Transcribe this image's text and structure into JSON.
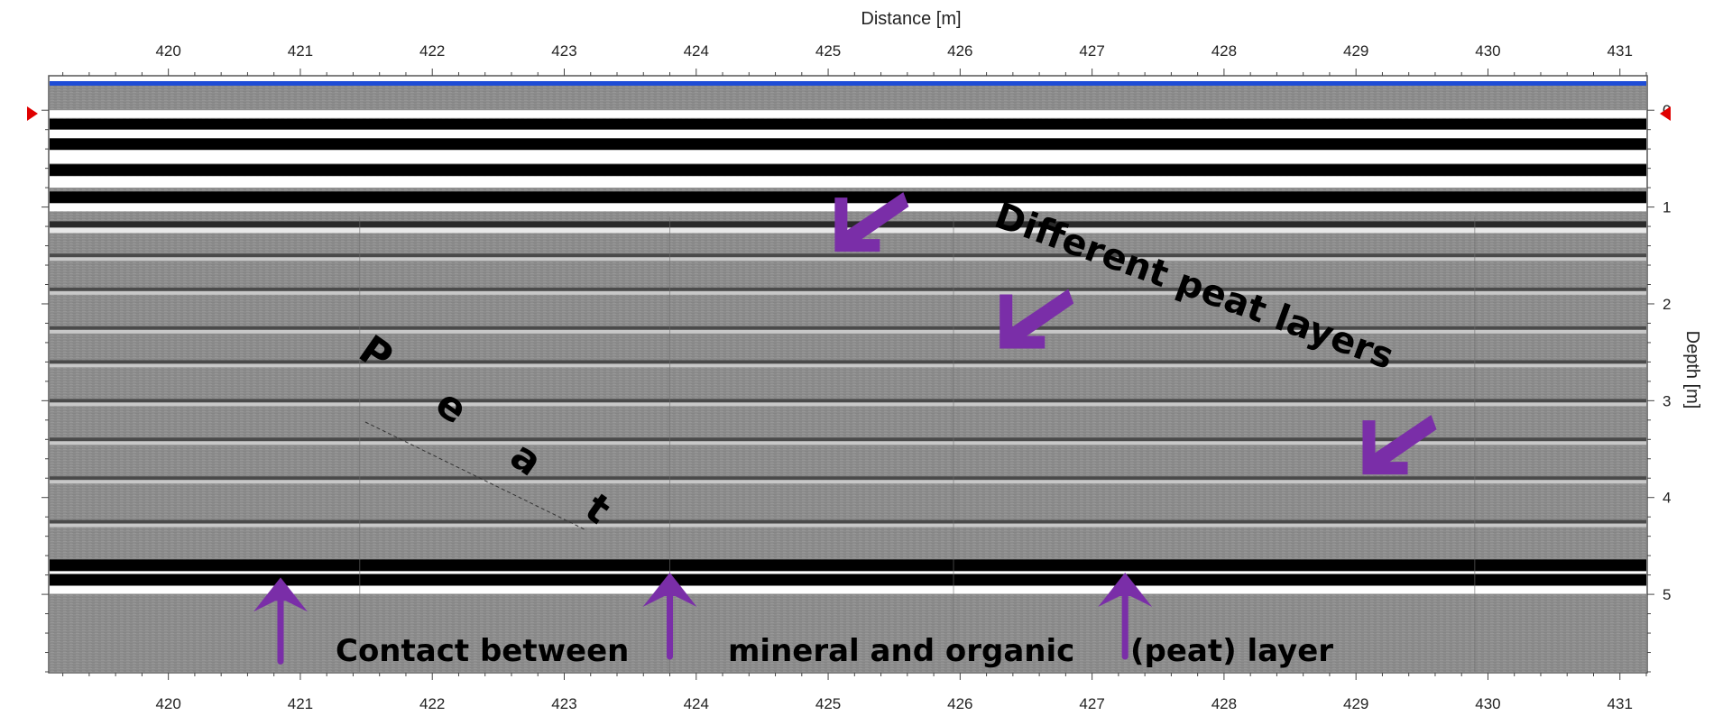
{
  "chart_data": {
    "type": "heatmap",
    "subtype": "ground-penetrating radar radargram (grayscale)",
    "xlabel": "Distance [m]",
    "ylabel": "Depth [m]",
    "xlim": [
      419.1,
      431.2
    ],
    "ylim": [
      -0.3,
      5.8
    ],
    "x_ticks": [
      420,
      421,
      422,
      423,
      424,
      425,
      426,
      427,
      428,
      429,
      430,
      431
    ],
    "y_ticks": [
      0,
      1,
      2,
      3,
      4,
      5
    ],
    "x_tick_labels": [
      "420",
      "421",
      "422",
      "423",
      "424",
      "425",
      "426",
      "427",
      "428",
      "429",
      "430",
      "431"
    ],
    "y_tick_labels": [
      "0",
      "1",
      "2",
      "3",
      "4",
      "5"
    ],
    "colormap": "grayscale",
    "surface_marker_depth": 0,
    "reflectors": [
      {
        "depth": 0.15,
        "strength": "strong"
      },
      {
        "depth": 0.35,
        "strength": "strong"
      },
      {
        "depth": 0.62,
        "strength": "strong"
      },
      {
        "depth": 0.9,
        "strength": "strong"
      },
      {
        "depth": 1.18,
        "strength": "medium"
      },
      {
        "depth": 1.5,
        "strength": "weak"
      },
      {
        "depth": 1.85,
        "strength": "weak"
      },
      {
        "depth": 2.25,
        "strength": "weak"
      },
      {
        "depth": 2.6,
        "strength": "weak"
      },
      {
        "depth": 3.0,
        "strength": "weak"
      },
      {
        "depth": 3.4,
        "strength": "weak"
      },
      {
        "depth": 3.8,
        "strength": "weak"
      },
      {
        "depth": 4.25,
        "strength": "weak"
      },
      {
        "depth": 4.7,
        "strength": "strong"
      },
      {
        "depth": 4.85,
        "strength": "strong"
      }
    ],
    "annotations": [
      {
        "text": "Different peat layers",
        "type": "label"
      },
      {
        "text": "P e a t",
        "type": "label"
      },
      {
        "text": "Contact between",
        "type": "label"
      },
      {
        "text": "mineral and organic",
        "type": "label"
      },
      {
        "text": "(peat) layer",
        "type": "label"
      }
    ],
    "arrows": [
      {
        "kind": "up",
        "x": 420.85,
        "depth": 4.9
      },
      {
        "kind": "up",
        "x": 423.8,
        "depth": 4.85
      },
      {
        "kind": "up",
        "x": 427.25,
        "depth": 4.85
      },
      {
        "kind": "down-left",
        "x": 425.05,
        "depth": 1.35
      },
      {
        "kind": "down-left",
        "x": 426.3,
        "depth": 2.35
      },
      {
        "kind": "down-left",
        "x": 429.05,
        "depth": 3.65
      }
    ],
    "colors": {
      "arrow": "#7a2ea8",
      "surface_line": "#1e4cd6",
      "marker": "#e00000"
    }
  }
}
